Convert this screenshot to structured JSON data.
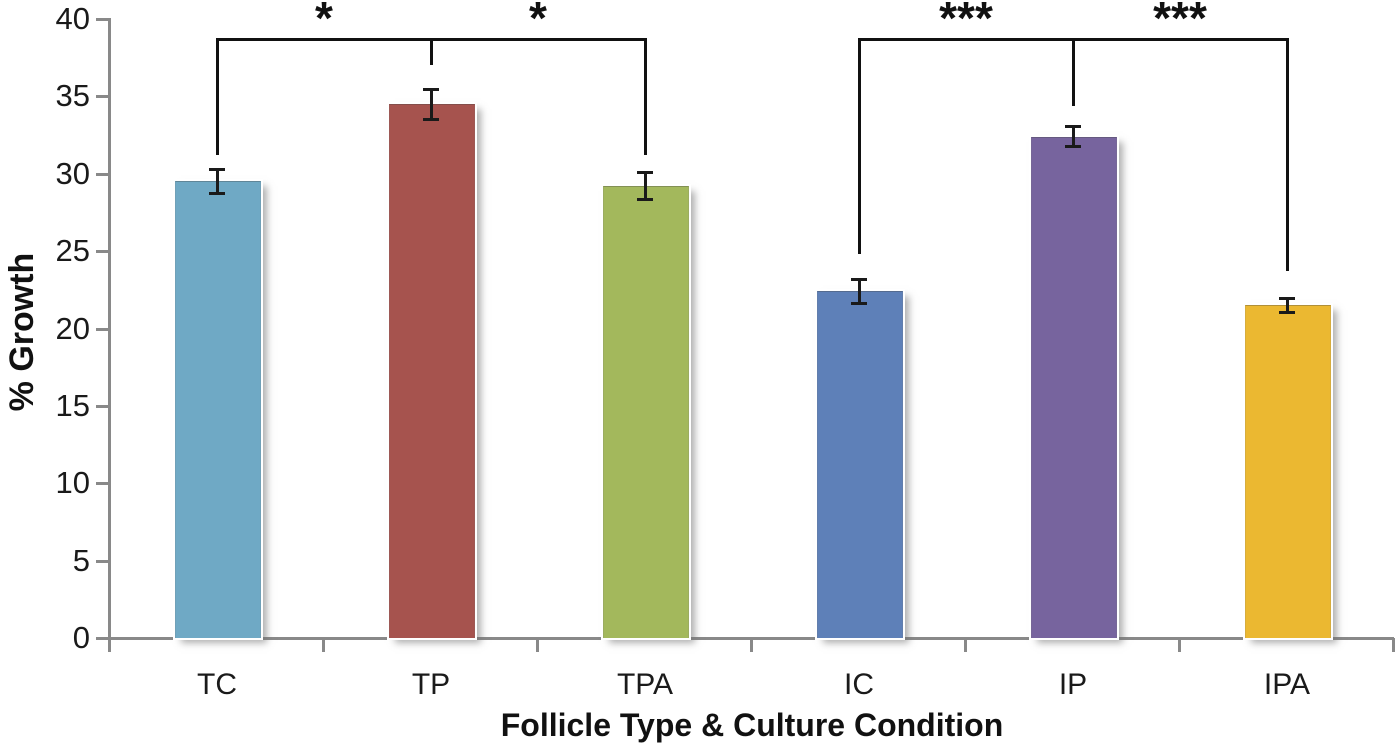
{
  "chart_data": {
    "type": "bar",
    "categories": [
      "TC",
      "TP",
      "TPA",
      "IC",
      "IP",
      "IPA"
    ],
    "values": [
      29.5,
      34.5,
      29.2,
      22.4,
      32.4,
      21.5
    ],
    "error_bars": [
      0.8,
      1.0,
      0.9,
      0.8,
      0.7,
      0.5
    ],
    "bar_colors": [
      "#6FA9C5",
      "#A6534E",
      "#A3B85C",
      "#5E80B8",
      "#77649E",
      "#EBB831"
    ],
    "title": "",
    "xlabel": "Follicle Type & Culture Condition",
    "ylabel": "% Growth",
    "ylim": [
      0,
      40
    ],
    "yticks": [
      0,
      5,
      10,
      15,
      20,
      25,
      30,
      35,
      40
    ],
    "grid": false,
    "legend": false,
    "axis_color": "#898989",
    "annotation_color": "#111111",
    "significance_brackets": [
      {
        "span": [
          "TC",
          "TP",
          "TPA"
        ],
        "top_value": 38.8,
        "drop_end_values": [
          31.2,
          37.0,
          31.2
        ],
        "segment_labels": [
          "*",
          "*"
        ]
      },
      {
        "span": [
          "IC",
          "IP",
          "IPA"
        ],
        "top_value": 38.8,
        "drop_end_values": [
          24.8,
          34.4,
          23.7
        ],
        "segment_labels": [
          "***",
          "***"
        ]
      }
    ]
  }
}
